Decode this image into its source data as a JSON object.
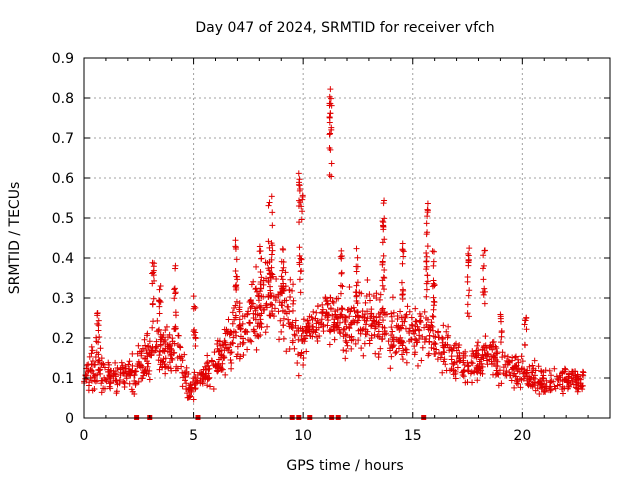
{
  "chart_data": {
    "type": "scatter",
    "title": "Day 047 of 2024, SRMTID for receiver vfch",
    "xlabel": "GPS time / hours",
    "ylabel": "SRMTID / TECUs",
    "xlim": [
      0,
      24
    ],
    "ylim": [
      0,
      0.9
    ],
    "xticks": [
      0,
      5,
      10,
      15,
      20
    ],
    "xtick_labels": [
      "0",
      "5",
      "10",
      "15",
      "20"
    ],
    "yticks": [
      0,
      0.1,
      0.2,
      0.3,
      0.4,
      0.5,
      0.6,
      0.7,
      0.8,
      0.9
    ],
    "ytick_labels": [
      "0",
      "0.1",
      "0.2",
      "0.3",
      "0.4",
      "0.5",
      "0.6",
      "0.7",
      "0.8",
      "0.9"
    ],
    "grid": true,
    "marker": "plus",
    "color": "#e00000",
    "zero_markers_x": [
      2.4,
      3.0,
      5.2,
      9.5,
      9.8,
      10.3,
      11.3,
      11.6,
      15.5
    ],
    "envelope": [
      {
        "x": 0.0,
        "base": 0.11,
        "spread": 0.07
      },
      {
        "x": 0.7,
        "base": 0.13,
        "spread": 0.1
      },
      {
        "x": 1.2,
        "base": 0.1,
        "spread": 0.06
      },
      {
        "x": 2.0,
        "base": 0.1,
        "spread": 0.06
      },
      {
        "x": 2.5,
        "base": 0.12,
        "spread": 0.08
      },
      {
        "x": 3.2,
        "base": 0.18,
        "spread": 0.1
      },
      {
        "x": 3.8,
        "base": 0.16,
        "spread": 0.09
      },
      {
        "x": 4.3,
        "base": 0.17,
        "spread": 0.1
      },
      {
        "x": 4.8,
        "base": 0.07,
        "spread": 0.05
      },
      {
        "x": 5.3,
        "base": 0.1,
        "spread": 0.04
      },
      {
        "x": 6.0,
        "base": 0.13,
        "spread": 0.07
      },
      {
        "x": 6.8,
        "base": 0.2,
        "spread": 0.1
      },
      {
        "x": 7.5,
        "base": 0.23,
        "spread": 0.11
      },
      {
        "x": 8.2,
        "base": 0.3,
        "spread": 0.15
      },
      {
        "x": 8.7,
        "base": 0.33,
        "spread": 0.16
      },
      {
        "x": 9.2,
        "base": 0.28,
        "spread": 0.14
      },
      {
        "x": 9.8,
        "base": 0.2,
        "spread": 0.12
      },
      {
        "x": 10.3,
        "base": 0.22,
        "spread": 0.06
      },
      {
        "x": 11.0,
        "base": 0.26,
        "spread": 0.1
      },
      {
        "x": 11.8,
        "base": 0.22,
        "spread": 0.11
      },
      {
        "x": 12.5,
        "base": 0.25,
        "spread": 0.12
      },
      {
        "x": 13.5,
        "base": 0.24,
        "spread": 0.12
      },
      {
        "x": 14.5,
        "base": 0.2,
        "spread": 0.1
      },
      {
        "x": 15.2,
        "base": 0.22,
        "spread": 0.1
      },
      {
        "x": 16.0,
        "base": 0.2,
        "spread": 0.1
      },
      {
        "x": 16.8,
        "base": 0.15,
        "spread": 0.08
      },
      {
        "x": 17.5,
        "base": 0.13,
        "spread": 0.07
      },
      {
        "x": 18.3,
        "base": 0.17,
        "spread": 0.09
      },
      {
        "x": 19.0,
        "base": 0.13,
        "spread": 0.07
      },
      {
        "x": 20.0,
        "base": 0.11,
        "spread": 0.06
      },
      {
        "x": 21.0,
        "base": 0.09,
        "spread": 0.05
      },
      {
        "x": 22.0,
        "base": 0.1,
        "spread": 0.05
      },
      {
        "x": 22.8,
        "base": 0.09,
        "spread": 0.04
      }
    ],
    "spikes": [
      {
        "x_start": 0.6,
        "x_end": 0.7,
        "y_from": 0.2,
        "y_to": 0.28
      },
      {
        "x_start": 3.1,
        "x_end": 3.2,
        "y_from": 0.22,
        "y_to": 0.39
      },
      {
        "x_start": 3.4,
        "x_end": 3.5,
        "y_from": 0.2,
        "y_to": 0.33
      },
      {
        "x_start": 4.1,
        "x_end": 4.2,
        "y_from": 0.22,
        "y_to": 0.39
      },
      {
        "x_start": 5.0,
        "x_end": 5.1,
        "y_from": 0.18,
        "y_to": 0.31
      },
      {
        "x_start": 6.9,
        "x_end": 7.0,
        "y_from": 0.25,
        "y_to": 0.46
      },
      {
        "x_start": 8.0,
        "x_end": 8.1,
        "y_from": 0.25,
        "y_to": 0.43
      },
      {
        "x_start": 8.4,
        "x_end": 8.6,
        "y_from": 0.3,
        "y_to": 0.57
      },
      {
        "x_start": 9.0,
        "x_end": 9.2,
        "y_from": 0.3,
        "y_to": 0.43
      },
      {
        "x_start": 9.8,
        "x_end": 10.0,
        "y_from": 0.3,
        "y_to": 0.62
      },
      {
        "x_start": 11.2,
        "x_end": 11.3,
        "y_from": 0.6,
        "y_to": 0.85
      },
      {
        "x_start": 11.7,
        "x_end": 11.8,
        "y_from": 0.25,
        "y_to": 0.42
      },
      {
        "x_start": 12.4,
        "x_end": 12.5,
        "y_from": 0.3,
        "y_to": 0.43
      },
      {
        "x_start": 13.6,
        "x_end": 13.7,
        "y_from": 0.3,
        "y_to": 0.55
      },
      {
        "x_start": 14.5,
        "x_end": 14.6,
        "y_from": 0.28,
        "y_to": 0.44
      },
      {
        "x_start": 15.6,
        "x_end": 15.7,
        "y_from": 0.3,
        "y_to": 0.55
      },
      {
        "x_start": 15.9,
        "x_end": 16.0,
        "y_from": 0.25,
        "y_to": 0.43
      },
      {
        "x_start": 17.5,
        "x_end": 17.6,
        "y_from": 0.25,
        "y_to": 0.43
      },
      {
        "x_start": 18.2,
        "x_end": 18.3,
        "y_from": 0.28,
        "y_to": 0.42
      },
      {
        "x_start": 19.0,
        "x_end": 19.1,
        "y_from": 0.18,
        "y_to": 0.26
      },
      {
        "x_start": 20.1,
        "x_end": 20.2,
        "y_from": 0.18,
        "y_to": 0.27
      }
    ],
    "point_count_estimate": 1400
  }
}
